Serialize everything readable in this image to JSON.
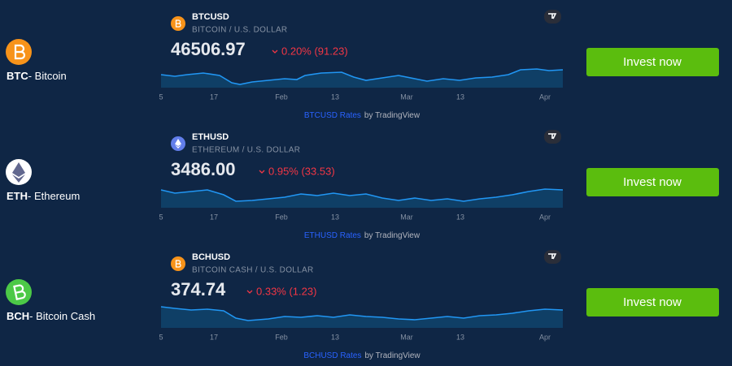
{
  "rows": [
    {
      "symbol": "BTC",
      "name": "- Bitcoin",
      "ticker": "BTCUSD",
      "pair": "BITCOIN / U.S. DOLLAR",
      "price": "46506.97",
      "change": "0.20% (91.23)",
      "axis": [
        "5",
        "17",
        "Feb",
        "13",
        "Mar",
        "13",
        "Apr"
      ],
      "credit_link": "BTCUSD Rates",
      "credit_by": "by TradingView",
      "button": "Invest now"
    },
    {
      "symbol": "ETH",
      "name": "- Ethereum",
      "ticker": "ETHUSD",
      "pair": "ETHEREUM / U.S. DOLLAR",
      "price": "3486.00",
      "change": "0.95% (33.53)",
      "axis": [
        "5",
        "17",
        "Feb",
        "13",
        "Mar",
        "13",
        "Apr"
      ],
      "credit_link": "ETHUSD Rates",
      "credit_by": "by TradingView",
      "button": "Invest now"
    },
    {
      "symbol": "BCH",
      "name": "- Bitcoin Cash",
      "ticker": "BCHUSD",
      "pair": "BITCOIN CASH / U.S. DOLLAR",
      "price": "374.74",
      "change": "0.33% (1.23)",
      "axis": [
        "5",
        "17",
        "Feb",
        "13",
        "Mar",
        "13",
        "Apr"
      ],
      "credit_link": "BCHUSD Rates",
      "credit_by": "by TradingView",
      "button": "Invest now"
    }
  ]
}
